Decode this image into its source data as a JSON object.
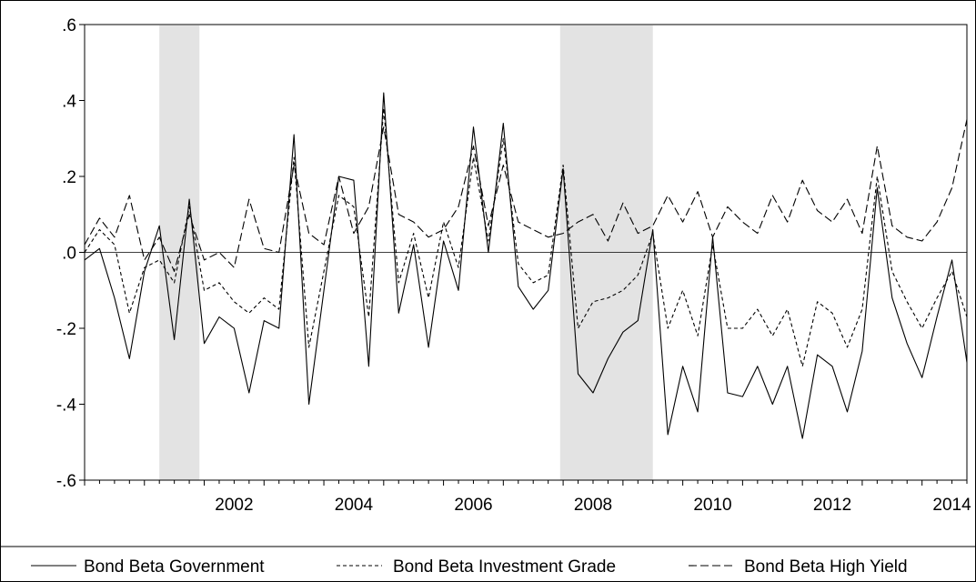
{
  "chart_data": {
    "type": "line",
    "title": "",
    "xlabel": "",
    "ylabel": "",
    "ylim": [
      -0.6,
      0.6
    ],
    "xlim": [
      2000.0,
      2014.75
    ],
    "y_ticks": [
      {
        "value": 0.6,
        "label": ".6"
      },
      {
        "value": 0.4,
        "label": ".4"
      },
      {
        "value": 0.2,
        "label": ".2"
      },
      {
        "value": 0.0,
        "label": ".0"
      },
      {
        "value": -0.2,
        "label": "-.2"
      },
      {
        "value": -0.4,
        "label": "-.4"
      },
      {
        "value": -0.6,
        "label": "-.6"
      }
    ],
    "x_ticks": [
      {
        "value": 2002,
        "label": "2002"
      },
      {
        "value": 2004,
        "label": "2004"
      },
      {
        "value": 2006,
        "label": "2006"
      },
      {
        "value": 2008,
        "label": "2008"
      },
      {
        "value": 2010,
        "label": "2010"
      },
      {
        "value": 2012,
        "label": "2012"
      },
      {
        "value": 2014,
        "label": "2014"
      }
    ],
    "grid": false,
    "zero_line": true,
    "legend_position": "bottom",
    "shaded_periods": [
      {
        "start": 2001.25,
        "end": 2001.92
      },
      {
        "start": 2007.95,
        "end": 2009.5
      }
    ],
    "series": [
      {
        "name": "Bond Beta Government",
        "style": "solid",
        "x": [
          2000.0,
          2000.25,
          2000.5,
          2000.75,
          2001.0,
          2001.25,
          2001.5,
          2001.75,
          2002.0,
          2002.25,
          2002.5,
          2002.75,
          2003.0,
          2003.25,
          2003.5,
          2003.75,
          2004.0,
          2004.25,
          2004.5,
          2004.75,
          2005.0,
          2005.25,
          2005.5,
          2005.75,
          2006.0,
          2006.25,
          2006.5,
          2006.75,
          2007.0,
          2007.25,
          2007.5,
          2007.75,
          2008.0,
          2008.25,
          2008.5,
          2008.75,
          2009.0,
          2009.25,
          2009.5,
          2009.75,
          2010.0,
          2010.25,
          2010.5,
          2010.75,
          2011.0,
          2011.25,
          2011.5,
          2011.75,
          2012.0,
          2012.25,
          2012.5,
          2012.75,
          2013.0,
          2013.25,
          2013.5,
          2013.75,
          2014.0,
          2014.25,
          2014.5,
          2014.75
        ],
        "values": [
          -0.02,
          0.01,
          -0.12,
          -0.28,
          -0.05,
          0.07,
          -0.23,
          0.14,
          -0.24,
          -0.17,
          -0.2,
          -0.37,
          -0.18,
          -0.2,
          0.31,
          -0.4,
          -0.1,
          0.2,
          0.19,
          -0.3,
          0.42,
          -0.16,
          0.02,
          -0.25,
          0.03,
          -0.1,
          0.33,
          0.0,
          0.34,
          -0.09,
          -0.15,
          -0.1,
          0.22,
          -0.32,
          -0.37,
          -0.28,
          -0.21,
          -0.18,
          0.06,
          -0.48,
          -0.3,
          -0.42,
          0.04,
          -0.37,
          -0.38,
          -0.3,
          -0.4,
          -0.3,
          -0.49,
          -0.27,
          -0.3,
          -0.42,
          -0.26,
          0.17,
          -0.12,
          -0.24,
          -0.33,
          -0.17,
          -0.02,
          -0.29
        ]
      },
      {
        "name": "Bond Beta Investment Grade",
        "style": "short-dash",
        "x": [
          2000.0,
          2000.25,
          2000.5,
          2000.75,
          2001.0,
          2001.25,
          2001.5,
          2001.75,
          2002.0,
          2002.25,
          2002.5,
          2002.75,
          2003.0,
          2003.25,
          2003.5,
          2003.75,
          2004.0,
          2004.25,
          2004.5,
          2004.75,
          2005.0,
          2005.25,
          2005.5,
          2005.75,
          2006.0,
          2006.25,
          2006.5,
          2006.75,
          2007.0,
          2007.25,
          2007.5,
          2007.75,
          2008.0,
          2008.25,
          2008.5,
          2008.75,
          2009.0,
          2009.25,
          2009.5,
          2009.75,
          2010.0,
          2010.25,
          2010.5,
          2010.75,
          2011.0,
          2011.25,
          2011.5,
          2011.75,
          2012.0,
          2012.25,
          2012.5,
          2012.75,
          2013.0,
          2013.25,
          2013.5,
          2013.75,
          2014.0,
          2014.25,
          2014.5,
          2014.75
        ],
        "values": [
          0.0,
          0.06,
          0.02,
          -0.16,
          -0.04,
          -0.02,
          -0.08,
          0.12,
          -0.1,
          -0.08,
          -0.13,
          -0.16,
          -0.12,
          -0.15,
          0.25,
          -0.25,
          -0.05,
          0.15,
          0.12,
          -0.17,
          0.38,
          -0.08,
          0.05,
          -0.12,
          0.08,
          -0.04,
          0.25,
          0.03,
          0.3,
          -0.03,
          -0.08,
          -0.06,
          0.23,
          -0.2,
          -0.13,
          -0.12,
          -0.1,
          -0.06,
          0.05,
          -0.2,
          -0.1,
          -0.22,
          0.02,
          -0.2,
          -0.2,
          -0.15,
          -0.22,
          -0.15,
          -0.3,
          -0.13,
          -0.16,
          -0.25,
          -0.15,
          0.2,
          -0.05,
          -0.13,
          -0.2,
          -0.12,
          -0.05,
          -0.17
        ]
      },
      {
        "name": "Bond Beta High Yield",
        "style": "long-dash",
        "x": [
          2000.0,
          2000.25,
          2000.5,
          2000.75,
          2001.0,
          2001.25,
          2001.5,
          2001.75,
          2002.0,
          2002.25,
          2002.5,
          2002.75,
          2003.0,
          2003.25,
          2003.5,
          2003.75,
          2004.0,
          2004.25,
          2004.5,
          2004.75,
          2005.0,
          2005.25,
          2005.5,
          2005.75,
          2006.0,
          2006.25,
          2006.5,
          2006.75,
          2007.0,
          2007.25,
          2007.5,
          2007.75,
          2008.0,
          2008.25,
          2008.5,
          2008.75,
          2009.0,
          2009.25,
          2009.5,
          2009.75,
          2010.0,
          2010.25,
          2010.5,
          2010.75,
          2011.0,
          2011.25,
          2011.5,
          2011.75,
          2012.0,
          2012.25,
          2012.5,
          2012.75,
          2013.0,
          2013.25,
          2013.5,
          2013.75,
          2014.0,
          2014.25,
          2014.5,
          2014.75
        ],
        "values": [
          0.02,
          0.09,
          0.04,
          0.15,
          -0.02,
          0.04,
          -0.05,
          0.1,
          -0.02,
          0.0,
          -0.04,
          0.14,
          0.01,
          0.0,
          0.23,
          0.05,
          0.02,
          0.2,
          0.05,
          0.12,
          0.33,
          0.1,
          0.08,
          0.04,
          0.06,
          0.12,
          0.28,
          0.07,
          0.23,
          0.08,
          0.06,
          0.04,
          0.05,
          0.08,
          0.1,
          0.03,
          0.13,
          0.05,
          0.07,
          0.15,
          0.08,
          0.16,
          0.04,
          0.12,
          0.08,
          0.05,
          0.15,
          0.08,
          0.19,
          0.11,
          0.08,
          0.14,
          0.05,
          0.28,
          0.07,
          0.04,
          0.03,
          0.08,
          0.17,
          0.35
        ]
      }
    ]
  }
}
